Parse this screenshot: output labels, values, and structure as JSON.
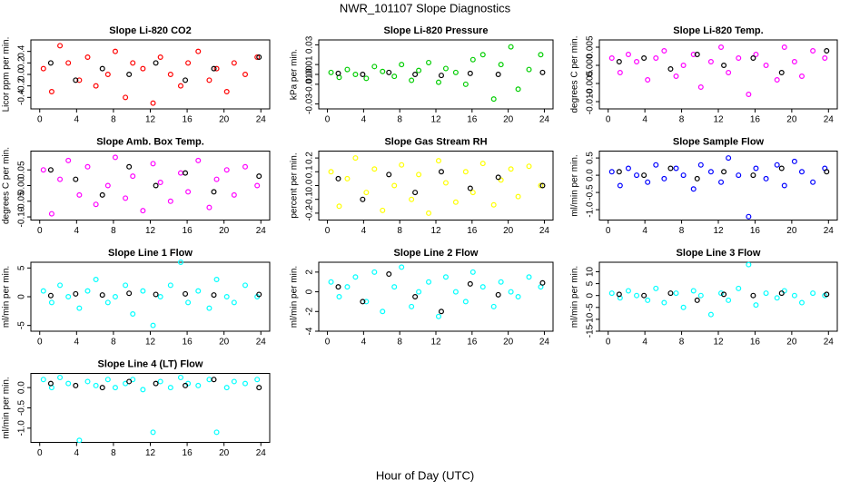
{
  "title": "NWR_101107  Slope Diagnostics",
  "xlabel": "Hour of Day (UTC)",
  "chart_data": [
    {
      "type": "scatter",
      "title": "Slope Li-820 CO2",
      "ylabel": "Licor ppm per min.",
      "xlim": [
        -0.96,
        24.96
      ],
      "xticks": [
        0,
        4,
        8,
        12,
        16,
        20,
        24
      ],
      "ylim": [
        -0.6,
        0.6
      ],
      "yticks": [
        {
          "value": -0.4,
          "label": "-0.4"
        },
        {
          "value": -0.2,
          "label": "-0.2"
        },
        {
          "value": 0,
          "label": "0.0"
        },
        {
          "value": 0.2,
          "label": "0.2"
        },
        {
          "value": 0.4,
          "label": "0.4"
        }
      ],
      "series": [
        {
          "color": "#ff0000",
          "x": [
            0.4,
            1.3,
            2.2,
            3.1,
            4.3,
            5.2,
            6.1,
            7.4,
            8.2,
            9.3,
            10.1,
            11.2,
            12.3,
            13.1,
            14.2,
            15.3,
            16.1,
            17.2,
            18.4,
            19.2,
            20.3,
            21.1,
            22.3,
            23.6
          ],
          "values": [
            0.1,
            -0.3,
            0.5,
            0.2,
            -0.1,
            0.3,
            -0.2,
            0.0,
            0.4,
            -0.4,
            0.2,
            0.1,
            -0.5,
            0.3,
            0.0,
            -0.2,
            0.2,
            0.4,
            -0.1,
            0.1,
            -0.3,
            0.2,
            0.0,
            0.3
          ]
        },
        {
          "color": "#000000",
          "x": [
            1.2,
            3.9,
            6.8,
            9.7,
            12.6,
            15.8,
            18.9,
            23.8
          ],
          "values": [
            0.2,
            -0.1,
            0.1,
            0.0,
            0.2,
            -0.1,
            0.1,
            0.3
          ]
        }
      ]
    },
    {
      "type": "scatter",
      "title": "Slope Li-820 Pressure",
      "ylabel": "kPa per min.",
      "xlim": [
        -0.96,
        24.96
      ],
      "xticks": [
        0,
        4,
        8,
        12,
        16,
        20,
        24
      ],
      "ylim": [
        -0.035,
        0.035
      ],
      "yticks": [
        {
          "value": -0.03,
          "label": "-0.03"
        },
        {
          "value": -0.01,
          "label": "-0.01"
        },
        {
          "value": 0,
          "label": "0.00"
        },
        {
          "value": 0.01,
          "label": "0.01"
        },
        {
          "value": 0.03,
          "label": "0.03"
        }
      ],
      "series": [
        {
          "color": "#00cd00",
          "x": [
            0.4,
            1.3,
            2.2,
            3.1,
            4.3,
            5.2,
            6.1,
            7.4,
            8.2,
            9.3,
            10.1,
            11.2,
            12.3,
            13.1,
            14.2,
            15.3,
            16.1,
            17.2,
            18.4,
            19.2,
            20.3,
            21.1,
            22.3,
            23.6
          ],
          "values": [
            0.002,
            -0.003,
            0.005,
            0.0,
            -0.004,
            0.008,
            0.003,
            -0.002,
            0.01,
            -0.006,
            0.004,
            0.012,
            -0.008,
            0.006,
            0.002,
            -0.01,
            0.015,
            0.02,
            -0.025,
            0.01,
            0.028,
            -0.015,
            0.005,
            0.02
          ]
        },
        {
          "color": "#000000",
          "x": [
            1.2,
            3.9,
            6.8,
            9.7,
            12.6,
            15.8,
            18.9,
            23.8
          ],
          "values": [
            0.001,
            0.0,
            0.002,
            0.0,
            -0.001,
            0.001,
            0.0,
            0.002
          ]
        }
      ]
    },
    {
      "type": "scatter",
      "title": "Slope Li-820 Temp.",
      "ylabel": "degrees C per min.",
      "xlim": [
        -0.96,
        24.96
      ],
      "xticks": [
        0,
        4,
        8,
        12,
        16,
        20,
        24
      ],
      "ylim": [
        -0.012,
        0.007
      ],
      "yticks": [
        {
          "value": -0.01,
          "label": "-0.010"
        },
        {
          "value": -0.005,
          "label": "-0.005"
        },
        {
          "value": 0,
          "label": "0.000"
        },
        {
          "value": 0.005,
          "label": "0.005"
        }
      ],
      "series": [
        {
          "color": "#ff00ff",
          "x": [
            0.4,
            1.3,
            2.2,
            3.1,
            4.3,
            5.2,
            6.1,
            7.4,
            8.2,
            9.3,
            10.1,
            11.2,
            12.3,
            13.1,
            14.2,
            15.3,
            16.1,
            17.2,
            18.4,
            19.2,
            20.3,
            21.1,
            22.3,
            23.6
          ],
          "values": [
            0.002,
            -0.002,
            0.003,
            0.001,
            -0.004,
            0.002,
            0.004,
            -0.003,
            0.0,
            0.003,
            -0.006,
            0.001,
            0.005,
            -0.002,
            0.002,
            -0.008,
            0.003,
            0.0,
            -0.004,
            0.005,
            0.001,
            -0.003,
            0.004,
            0.002
          ]
        },
        {
          "color": "#000000",
          "x": [
            1.2,
            3.9,
            6.8,
            9.7,
            12.6,
            15.8,
            18.9,
            23.8
          ],
          "values": [
            0.001,
            0.002,
            -0.001,
            0.003,
            0.0,
            0.002,
            -0.002,
            0.004
          ]
        }
      ]
    },
    {
      "type": "scatter",
      "title": "Slope Amb. Box Temp.",
      "ylabel": "degrees C per min.",
      "xlim": [
        -0.96,
        24.96
      ],
      "xticks": [
        0,
        4,
        8,
        12,
        16,
        20,
        24
      ],
      "ylim": [
        -0.11,
        0.11
      ],
      "yticks": [
        {
          "value": -0.1,
          "label": "-0.10"
        },
        {
          "value": -0.05,
          "label": "-0.05"
        },
        {
          "value": 0,
          "label": "0.00"
        },
        {
          "value": 0.05,
          "label": "0.05"
        }
      ],
      "series": [
        {
          "color": "#ff00ff",
          "x": [
            0.4,
            1.3,
            2.2,
            3.1,
            4.3,
            5.2,
            6.1,
            7.4,
            8.2,
            9.3,
            10.1,
            11.2,
            12.3,
            13.1,
            14.2,
            15.3,
            16.1,
            17.2,
            18.4,
            19.2,
            20.3,
            21.1,
            22.3,
            23.6
          ],
          "values": [
            0.05,
            -0.09,
            0.02,
            0.08,
            -0.03,
            0.06,
            -0.06,
            0.0,
            0.09,
            -0.04,
            0.03,
            -0.08,
            0.07,
            0.01,
            -0.05,
            0.04,
            -0.02,
            0.08,
            -0.07,
            0.02,
            0.05,
            -0.03,
            0.06,
            0.0
          ]
        },
        {
          "color": "#000000",
          "x": [
            1.2,
            3.9,
            6.8,
            9.7,
            12.6,
            15.8,
            18.9,
            23.8
          ],
          "values": [
            0.05,
            0.02,
            -0.03,
            0.06,
            0.0,
            0.04,
            -0.02,
            0.03
          ]
        }
      ]
    },
    {
      "type": "scatter",
      "title": "Slope Gas Stream RH",
      "ylabel": "percent per min.",
      "xlim": [
        -0.96,
        24.96
      ],
      "xticks": [
        0,
        4,
        8,
        12,
        16,
        20,
        24
      ],
      "ylim": [
        -0.25,
        0.25
      ],
      "yticks": [
        {
          "value": -0.2,
          "label": "-0.2"
        },
        {
          "value": -0.1,
          "label": "-0.1"
        },
        {
          "value": 0,
          "label": "0.0"
        },
        {
          "value": 0.1,
          "label": "0.1"
        },
        {
          "value": 0.2,
          "label": "0.2"
        }
      ],
      "series": [
        {
          "color": "#ffff00",
          "x": [
            0.4,
            1.3,
            2.2,
            3.1,
            4.3,
            5.2,
            6.1,
            7.4,
            8.2,
            9.3,
            10.1,
            11.2,
            12.3,
            13.1,
            14.2,
            15.3,
            16.1,
            17.2,
            18.4,
            19.2,
            20.3,
            21.1,
            22.3,
            23.6
          ],
          "values": [
            0.1,
            -0.15,
            0.05,
            0.2,
            -0.05,
            0.12,
            -0.18,
            0.0,
            0.15,
            -0.1,
            0.08,
            -0.2,
            0.18,
            0.02,
            -0.12,
            0.1,
            -0.05,
            0.16,
            -0.14,
            0.04,
            0.12,
            -0.08,
            0.14,
            0.0
          ]
        },
        {
          "color": "#000000",
          "x": [
            1.2,
            3.9,
            6.8,
            9.7,
            12.6,
            15.8,
            18.9,
            23.8
          ],
          "values": [
            0.05,
            -0.1,
            0.08,
            -0.05,
            0.1,
            -0.02,
            0.06,
            0.0
          ]
        }
      ]
    },
    {
      "type": "scatter",
      "title": "Slope Sample Flow",
      "ylabel": "ml/min per min.",
      "xlim": [
        -0.96,
        24.96
      ],
      "xticks": [
        0,
        4,
        8,
        12,
        16,
        20,
        24
      ],
      "ylim": [
        -1.3,
        0.7
      ],
      "yticks": [
        {
          "value": -1,
          "label": "-1.0"
        },
        {
          "value": -0.5,
          "label": "-0.5"
        },
        {
          "value": 0,
          "label": "0.0"
        },
        {
          "value": 0.5,
          "label": "0.5"
        }
      ],
      "series": [
        {
          "color": "#0000ff",
          "x": [
            0.4,
            1.3,
            2.2,
            3.1,
            4.3,
            5.2,
            6.1,
            7.4,
            8.2,
            9.3,
            10.1,
            11.2,
            12.3,
            13.1,
            14.2,
            15.3,
            16.1,
            17.2,
            18.4,
            19.2,
            20.3,
            21.1,
            22.3,
            23.6
          ],
          "values": [
            0.1,
            -0.3,
            0.2,
            0.0,
            -0.2,
            0.3,
            -0.1,
            0.2,
            0.0,
            -0.4,
            0.3,
            0.1,
            -0.2,
            0.5,
            0.0,
            -1.2,
            0.2,
            -0.1,
            0.3,
            -0.3,
            0.4,
            0.1,
            -0.2,
            0.2
          ]
        },
        {
          "color": "#000000",
          "x": [
            1.2,
            3.9,
            6.8,
            9.7,
            12.6,
            15.8,
            18.9,
            23.8
          ],
          "values": [
            0.1,
            0.0,
            0.2,
            -0.1,
            0.1,
            0.0,
            0.2,
            0.1
          ]
        }
      ]
    },
    {
      "type": "scatter",
      "title": "Slope Line 1 Flow",
      "ylabel": "ml/min per min.",
      "xlim": [
        -0.96,
        24.96
      ],
      "xticks": [
        0,
        4,
        8,
        12,
        16,
        20,
        24
      ],
      "ylim": [
        -6,
        6
      ],
      "yticks": [
        -5,
        0,
        5
      ],
      "series": [
        {
          "color": "#00ffff",
          "x": [
            0.4,
            1.3,
            2.2,
            3.1,
            4.3,
            5.2,
            6.1,
            7.4,
            8.2,
            9.3,
            10.1,
            11.2,
            12.3,
            13.1,
            14.2,
            15.3,
            16.1,
            17.2,
            18.4,
            19.2,
            20.3,
            21.1,
            22.3,
            23.6
          ],
          "values": [
            1,
            -1,
            2,
            0,
            -2,
            1,
            3,
            -1,
            0,
            2,
            -3,
            1,
            -5,
            0,
            2,
            6,
            -1,
            1,
            -2,
            3,
            0,
            -1,
            2,
            0
          ]
        },
        {
          "color": "#000000",
          "x": [
            1.2,
            3.9,
            6.8,
            9.7,
            12.6,
            15.8,
            18.9,
            23.8
          ],
          "values": [
            0.2,
            0.5,
            0.3,
            0.6,
            0.4,
            0.5,
            0.3,
            0.4
          ]
        }
      ]
    },
    {
      "type": "scatter",
      "title": "Slope Line 2 Flow",
      "ylabel": "ml/min per min.",
      "xlim": [
        -0.96,
        24.96
      ],
      "xticks": [
        0,
        4,
        8,
        12,
        16,
        20,
        24
      ],
      "ylim": [
        -4,
        3
      ],
      "yticks": [
        -4,
        -2,
        0,
        2
      ],
      "series": [
        {
          "color": "#00ffff",
          "x": [
            0.4,
            1.3,
            2.2,
            3.1,
            4.3,
            5.2,
            6.1,
            7.4,
            8.2,
            9.3,
            10.1,
            11.2,
            12.3,
            13.1,
            14.2,
            15.3,
            16.1,
            17.2,
            18.4,
            19.2,
            20.3,
            21.1,
            22.3,
            23.6
          ],
          "values": [
            1,
            -0.5,
            0.5,
            1.5,
            -1,
            2,
            -2,
            0.5,
            2.5,
            -1.5,
            0,
            1,
            -2.5,
            1.5,
            0,
            -1,
            2,
            0.5,
            -1.5,
            1,
            0,
            -0.5,
            1.5,
            0.5
          ]
        },
        {
          "color": "#000000",
          "x": [
            1.2,
            3.9,
            6.8,
            9.7,
            12.6,
            15.8,
            18.9,
            23.8
          ],
          "values": [
            0.5,
            -1,
            1.8,
            -0.5,
            -2,
            0.8,
            -0.3,
            0.9
          ]
        }
      ]
    },
    {
      "type": "scatter",
      "title": "Slope Line 3 Flow",
      "ylabel": "ml/min per min.",
      "xlim": [
        -0.96,
        24.96
      ],
      "xticks": [
        0,
        4,
        8,
        12,
        16,
        20,
        24
      ],
      "ylim": [
        -15,
        14
      ],
      "yticks": [
        -15,
        -10,
        -5,
        0,
        5,
        10
      ],
      "series": [
        {
          "color": "#00ffff",
          "x": [
            0.4,
            1.3,
            2.2,
            3.1,
            4.3,
            5.2,
            6.1,
            7.4,
            8.2,
            9.3,
            10.1,
            11.2,
            12.3,
            13.1,
            14.2,
            15.3,
            16.1,
            17.2,
            18.4,
            19.2,
            20.3,
            21.1,
            22.3,
            23.6
          ],
          "values": [
            1,
            -1,
            2,
            0,
            -2,
            3,
            -3,
            1,
            -5,
            2,
            0,
            -8,
            1,
            -2,
            3,
            13,
            -4,
            1,
            -1,
            2,
            0,
            -3,
            1,
            0
          ]
        },
        {
          "color": "#000000",
          "x": [
            1.2,
            3.9,
            6.8,
            9.7,
            12.6,
            15.8,
            18.9,
            23.8
          ],
          "values": [
            0.5,
            0,
            1,
            -2,
            0.5,
            0,
            1,
            0.5
          ]
        }
      ]
    },
    {
      "type": "scatter",
      "title": "Slope Line 4 (LT) Flow",
      "ylabel": "ml/min per min.",
      "xlim": [
        -0.96,
        24.96
      ],
      "xticks": [
        0,
        4,
        8,
        12,
        16,
        20,
        24
      ],
      "ylim": [
        -1.35,
        0.35
      ],
      "yticks": [
        {
          "value": -1,
          "label": "-1.0"
        },
        {
          "value": -0.5,
          "label": "-0.5"
        },
        {
          "value": 0,
          "label": "0.0"
        }
      ],
      "series": [
        {
          "color": "#00ffff",
          "x": [
            0.4,
            1.3,
            2.2,
            3.1,
            4.3,
            5.2,
            6.1,
            7.4,
            8.2,
            9.3,
            10.1,
            11.2,
            12.3,
            13.1,
            14.2,
            15.3,
            16.1,
            17.2,
            18.4,
            19.2,
            20.3,
            21.1,
            22.3,
            23.6
          ],
          "values": [
            0.2,
            0.0,
            0.25,
            0.1,
            -1.3,
            0.15,
            0.05,
            0.2,
            0.0,
            0.1,
            0.2,
            -0.05,
            -1.1,
            0.15,
            0.0,
            0.25,
            0.1,
            0.05,
            0.2,
            -1.1,
            0.0,
            0.15,
            0.1,
            0.2
          ]
        },
        {
          "color": "#000000",
          "x": [
            1.2,
            3.9,
            6.8,
            9.7,
            12.6,
            15.8,
            18.9,
            23.8
          ],
          "values": [
            0.1,
            0.05,
            0.0,
            0.15,
            0.1,
            0.05,
            0.2,
            0.0
          ]
        }
      ]
    }
  ]
}
